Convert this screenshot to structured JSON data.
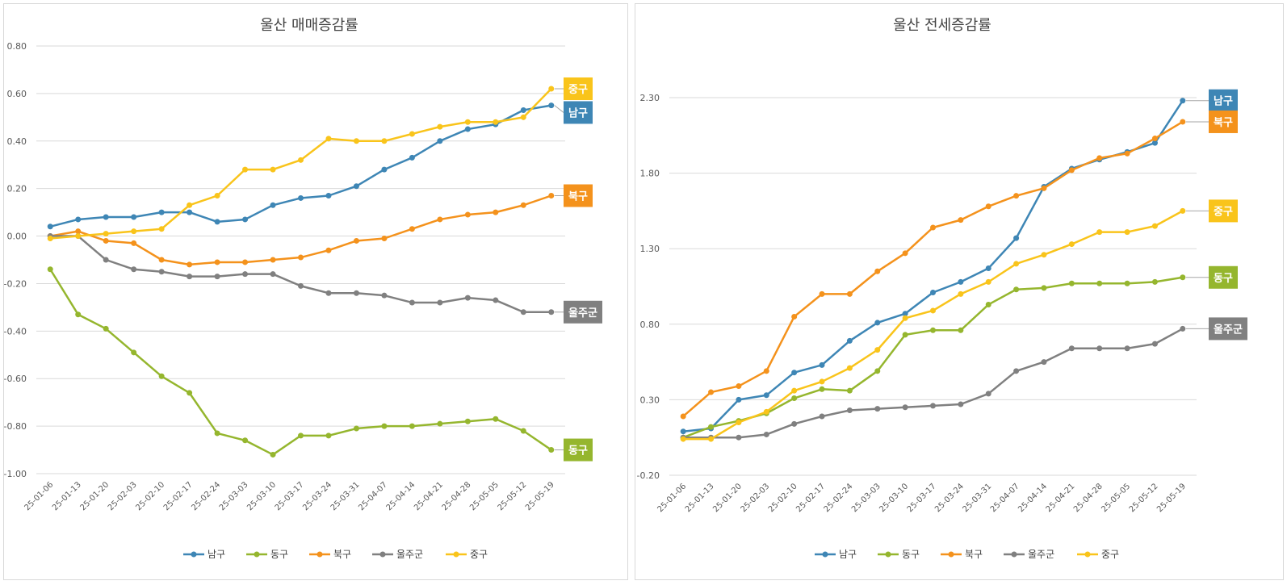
{
  "colors": {
    "남구": "#3E86B5",
    "동구": "#95B62E",
    "북구": "#F4921C",
    "울주군": "#808080",
    "중구": "#F9C41B",
    "grid": "#d9d9d9"
  },
  "chart_data": [
    {
      "type": "line",
      "title": "울산 매매증감률",
      "categories": [
        "25-01-06",
        "25-01-13",
        "25-01-20",
        "25-02-03",
        "25-02-10",
        "25-02-17",
        "25-02-24",
        "25-03-03",
        "25-03-10",
        "25-03-17",
        "25-03-24",
        "25-03-31",
        "25-04-07",
        "25-04-14",
        "25-04-21",
        "25-04-28",
        "25-05-05",
        "25-05-12",
        "25-05-19"
      ],
      "ylim": [
        -1.0,
        0.8
      ],
      "yticks": [
        -1.0,
        -0.8,
        -0.6,
        -0.4,
        -0.2,
        0.0,
        0.2,
        0.4,
        0.6,
        0.8
      ],
      "ytick_labels": [
        "-1.00",
        "-0.80",
        "-0.60",
        "-0.40",
        "-0.20",
        "0.00",
        "0.20",
        "0.40",
        "0.60",
        "0.80"
      ],
      "grid": true,
      "legend": "bottom",
      "series": [
        {
          "name": "남구",
          "values": [
            0.04,
            0.07,
            0.08,
            0.08,
            0.1,
            0.1,
            0.06,
            0.07,
            0.13,
            0.16,
            0.17,
            0.21,
            0.28,
            0.33,
            0.4,
            0.45,
            0.47,
            0.53,
            0.55
          ]
        },
        {
          "name": "동구",
          "values": [
            -0.14,
            -0.33,
            -0.39,
            -0.49,
            -0.59,
            -0.66,
            -0.83,
            -0.86,
            -0.92,
            -0.84,
            -0.84,
            -0.81,
            -0.8,
            -0.8,
            -0.79,
            -0.78,
            -0.77,
            -0.82,
            -0.9
          ]
        },
        {
          "name": "북구",
          "values": [
            0.0,
            0.02,
            -0.02,
            -0.03,
            -0.1,
            -0.12,
            -0.11,
            -0.11,
            -0.1,
            -0.09,
            -0.06,
            -0.02,
            -0.01,
            0.03,
            0.07,
            0.09,
            0.1,
            0.13,
            0.17
          ]
        },
        {
          "name": "울주군",
          "values": [
            0.0,
            0.0,
            -0.1,
            -0.14,
            -0.15,
            -0.17,
            -0.17,
            -0.16,
            -0.16,
            -0.21,
            -0.24,
            -0.24,
            -0.25,
            -0.28,
            -0.28,
            -0.26,
            -0.27,
            -0.32,
            -0.32
          ]
        },
        {
          "name": "중구",
          "values": [
            -0.01,
            0.0,
            0.01,
            0.02,
            0.03,
            0.13,
            0.17,
            0.28,
            0.28,
            0.32,
            0.41,
            0.4,
            0.4,
            0.43,
            0.46,
            0.48,
            0.48,
            0.5,
            0.62
          ]
        }
      ],
      "end_labels": [
        {
          "series": "중구",
          "text": "중구",
          "value": 0.62
        },
        {
          "series": "남구",
          "text": "남구",
          "value": 0.52
        },
        {
          "series": "북구",
          "text": "북구",
          "value": 0.17
        },
        {
          "series": "울주군",
          "text": "울주군",
          "value": -0.32
        },
        {
          "series": "동구",
          "text": "동구",
          "value": -0.9
        }
      ]
    },
    {
      "type": "line",
      "title": "울산 전세증감률",
      "categories": [
        "25-01-06",
        "25-01-13",
        "25-01-20",
        "25-02-03",
        "25-02-10",
        "25-02-17",
        "25-02-24",
        "25-03-03",
        "25-03-10",
        "25-03-17",
        "25-03-24",
        "25-03-31",
        "25-04-07",
        "25-04-14",
        "25-04-21",
        "25-04-28",
        "25-05-05",
        "25-05-12",
        "25-05-19"
      ],
      "ylim": [
        -0.2,
        2.3
      ],
      "yticks": [
        -0.2,
        0.3,
        0.8,
        1.3,
        1.8,
        2.3
      ],
      "ytick_labels": [
        "-0.20",
        "0.30",
        "0.80",
        "1.30",
        "1.80",
        "2.30"
      ],
      "grid": true,
      "legend": "bottom",
      "series": [
        {
          "name": "남구",
          "values": [
            0.09,
            0.11,
            0.3,
            0.33,
            0.48,
            0.53,
            0.69,
            0.81,
            0.87,
            1.01,
            1.08,
            1.17,
            1.37,
            1.71,
            1.83,
            1.89,
            1.94,
            2.0,
            2.28
          ]
        },
        {
          "name": "동구",
          "values": [
            0.05,
            0.12,
            0.16,
            0.21,
            0.31,
            0.37,
            0.36,
            0.49,
            0.73,
            0.76,
            0.76,
            0.93,
            1.03,
            1.04,
            1.07,
            1.07,
            1.07,
            1.08,
            1.11
          ]
        },
        {
          "name": "북구",
          "values": [
            0.19,
            0.35,
            0.39,
            0.49,
            0.85,
            1.0,
            1.0,
            1.15,
            1.27,
            1.44,
            1.49,
            1.58,
            1.65,
            1.7,
            1.82,
            1.9,
            1.93,
            2.03,
            2.14
          ]
        },
        {
          "name": "울주군",
          "values": [
            0.05,
            0.05,
            0.05,
            0.07,
            0.14,
            0.19,
            0.23,
            0.24,
            0.25,
            0.26,
            0.27,
            0.34,
            0.49,
            0.55,
            0.64,
            0.64,
            0.64,
            0.67,
            0.77
          ]
        },
        {
          "name": "중구",
          "values": [
            0.04,
            0.04,
            0.15,
            0.22,
            0.36,
            0.42,
            0.51,
            0.63,
            0.84,
            0.89,
            1.0,
            1.08,
            1.2,
            1.26,
            1.33,
            1.41,
            1.41,
            1.45,
            1.55
          ]
        }
      ],
      "end_labels": [
        {
          "series": "남구",
          "text": "남구",
          "value": 2.28
        },
        {
          "series": "북구",
          "text": "북구",
          "value": 2.14
        },
        {
          "series": "중구",
          "text": "중구",
          "value": 1.55
        },
        {
          "series": "동구",
          "text": "동구",
          "value": 1.11
        },
        {
          "series": "울주군",
          "text": "울주군",
          "value": 0.77
        }
      ]
    }
  ]
}
